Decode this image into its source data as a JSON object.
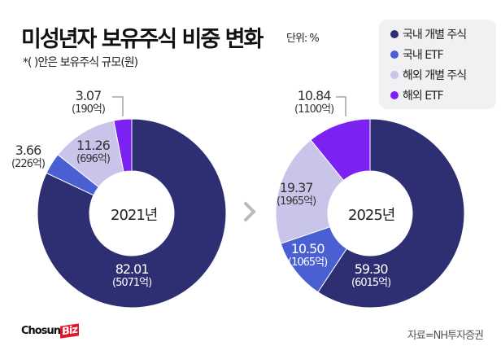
{
  "title": "미성년자 보유주식 비중 변화",
  "unit": "단위: %",
  "subtitle": "*(   )안은 보유주식 규모(원)",
  "source": "자료=NH투자증권",
  "logo": "ChosunBiz",
  "arrow_icon": "chevron-right-icon",
  "chart_data": [
    {
      "type": "pie",
      "donut": true,
      "center_label": "2021년",
      "categories": [
        "국내 개별 주식",
        "국내 ETF",
        "해외 개별 주식",
        "해외 ETF"
      ],
      "values": [
        82.01,
        3.66,
        11.26,
        3.07
      ],
      "labels": [
        "82.01",
        "3.66",
        "11.26",
        "3.07"
      ],
      "amounts": [
        "(5071억)",
        "(226억)",
        "(696억)",
        "(190억)"
      ],
      "colors": [
        "#2e2f72",
        "#4a5fd2",
        "#c9c4e9",
        "#7b22f2"
      ]
    },
    {
      "type": "pie",
      "donut": true,
      "center_label": "2025년",
      "categories": [
        "국내 개별 주식",
        "국내 ETF",
        "해외 개별 주식",
        "해외 ETF"
      ],
      "values": [
        59.3,
        10.5,
        19.37,
        10.84
      ],
      "labels": [
        "59.30",
        "10.50",
        "19.37",
        "10.84"
      ],
      "amounts": [
        "(6015억)",
        "(1065억)",
        "(1965억)",
        "(1100억)"
      ],
      "colors": [
        "#2e2f72",
        "#4a5fd2",
        "#c9c4e9",
        "#7b22f2"
      ]
    }
  ],
  "legend": {
    "items": [
      {
        "label": "국내 개별 주식",
        "color": "#2e2f72"
      },
      {
        "label": "국내 ETF",
        "color": "#4a5fd2"
      },
      {
        "label": "해외 개별 주식",
        "color": "#c9c4e9"
      },
      {
        "label": "해외 ETF",
        "color": "#7b22f2"
      }
    ],
    "placement": "top-right"
  }
}
